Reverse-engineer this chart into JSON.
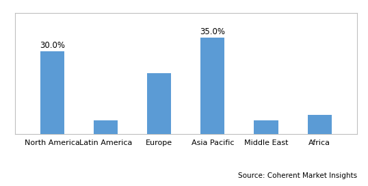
{
  "categories": [
    "North America",
    "Latin America",
    "Europe",
    "Asia Pacific",
    "Middle East",
    "Africa"
  ],
  "values": [
    30.0,
    5.0,
    22.0,
    35.0,
    5.0,
    7.0
  ],
  "bar_color": "#5b9bd5",
  "labeled_bars": [
    0,
    3
  ],
  "labels": [
    "30.0%",
    "35.0%"
  ],
  "ylim": [
    0,
    44
  ],
  "source_text": "Source: Coherent Market Insights",
  "background_color": "#ffffff",
  "grid_color": "#d9d9d9",
  "bar_width": 0.45,
  "label_fontsize": 8.5,
  "tick_fontsize": 8.0,
  "source_fontsize": 7.5,
  "border_color": "#bfbfbf"
}
